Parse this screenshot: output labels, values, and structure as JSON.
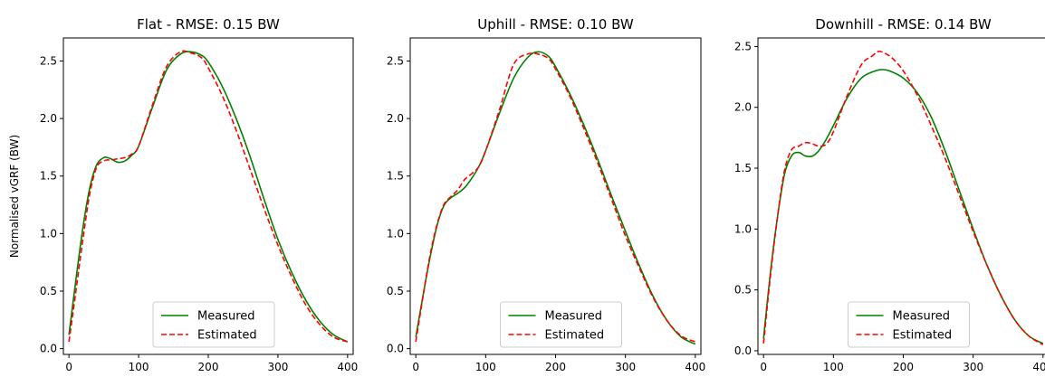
{
  "chart_data": [
    {
      "type": "line",
      "title": "Flat - RMSE: 0.15 BW",
      "ylabel": "Normalised vGRF (BW)",
      "xlabel": "",
      "xlim": [
        -8,
        408
      ],
      "ylim": [
        -0.05,
        2.7
      ],
      "xticks": [
        0,
        100,
        200,
        300,
        400
      ],
      "yticks": [
        0.0,
        0.5,
        1.0,
        1.5,
        2.0,
        2.5
      ],
      "xtick_labels": [
        "0",
        "100",
        "200",
        "300",
        "400"
      ],
      "ytick_labels": [
        "0.0",
        "0.5",
        "1.0",
        "1.5",
        "2.0",
        "2.5"
      ],
      "legend": "lower-center",
      "series": [
        {
          "name": "Measured",
          "color": "#008000",
          "style": "solid",
          "x": [
            0,
            10,
            20,
            30,
            40,
            50,
            55,
            60,
            70,
            80,
            90,
            100,
            120,
            140,
            160,
            175,
            190,
            200,
            220,
            240,
            260,
            280,
            300,
            320,
            340,
            360,
            380,
            400
          ],
          "y": [
            0.12,
            0.6,
            1.05,
            1.4,
            1.6,
            1.66,
            1.66,
            1.65,
            1.62,
            1.63,
            1.68,
            1.76,
            2.1,
            2.42,
            2.56,
            2.58,
            2.55,
            2.49,
            2.28,
            2.0,
            1.67,
            1.3,
            0.95,
            0.66,
            0.42,
            0.24,
            0.12,
            0.06
          ]
        },
        {
          "name": "Estimated",
          "color": "#ff0000",
          "style": "dashed",
          "x": [
            0,
            10,
            20,
            30,
            40,
            50,
            55,
            60,
            70,
            80,
            90,
            100,
            120,
            140,
            160,
            175,
            190,
            200,
            220,
            240,
            260,
            280,
            300,
            320,
            340,
            360,
            380,
            400
          ],
          "y": [
            0.06,
            0.5,
            0.95,
            1.35,
            1.58,
            1.63,
            1.64,
            1.64,
            1.65,
            1.66,
            1.69,
            1.76,
            2.12,
            2.45,
            2.58,
            2.57,
            2.53,
            2.44,
            2.2,
            1.9,
            1.56,
            1.22,
            0.9,
            0.62,
            0.38,
            0.21,
            0.1,
            0.06
          ]
        }
      ]
    },
    {
      "type": "line",
      "title": "Uphill - RMSE: 0.10 BW",
      "xlabel": "",
      "ylabel": "",
      "xlim": [
        -8,
        408
      ],
      "ylim": [
        -0.05,
        2.7
      ],
      "xticks": [
        0,
        100,
        200,
        300,
        400
      ],
      "yticks": [
        0.0,
        0.5,
        1.0,
        1.5,
        2.0,
        2.5
      ],
      "xtick_labels": [
        "0",
        "100",
        "200",
        "300",
        "400"
      ],
      "ytick_labels": [
        "0.0",
        "0.5",
        "1.0",
        "1.5",
        "2.0",
        "2.5"
      ],
      "legend": "lower-center",
      "series": [
        {
          "name": "Measured",
          "color": "#008000",
          "style": "solid",
          "x": [
            0,
            10,
            20,
            30,
            40,
            50,
            60,
            70,
            80,
            90,
            100,
            120,
            140,
            160,
            175,
            190,
            200,
            220,
            240,
            260,
            280,
            300,
            320,
            340,
            360,
            380,
            400
          ],
          "y": [
            0.1,
            0.45,
            0.78,
            1.06,
            1.24,
            1.31,
            1.35,
            1.4,
            1.48,
            1.58,
            1.72,
            2.05,
            2.35,
            2.53,
            2.58,
            2.54,
            2.45,
            2.22,
            1.95,
            1.65,
            1.33,
            1.02,
            0.72,
            0.45,
            0.24,
            0.1,
            0.04
          ]
        },
        {
          "name": "Estimated",
          "color": "#ff0000",
          "style": "dashed",
          "x": [
            0,
            10,
            20,
            30,
            40,
            50,
            60,
            70,
            80,
            90,
            100,
            120,
            140,
            160,
            175,
            190,
            200,
            220,
            240,
            260,
            280,
            300,
            320,
            340,
            360,
            380,
            400
          ],
          "y": [
            0.06,
            0.44,
            0.8,
            1.07,
            1.25,
            1.32,
            1.38,
            1.47,
            1.52,
            1.58,
            1.72,
            2.08,
            2.47,
            2.56,
            2.56,
            2.52,
            2.43,
            2.2,
            1.92,
            1.62,
            1.3,
            0.98,
            0.7,
            0.44,
            0.24,
            0.11,
            0.06
          ]
        }
      ]
    },
    {
      "type": "line",
      "title": "Downhill - RMSE: 0.14 BW",
      "xlabel": "",
      "ylabel": "",
      "xlim": [
        -8,
        408
      ],
      "ylim": [
        -0.03,
        2.57
      ],
      "xticks": [
        0,
        100,
        200,
        300,
        400
      ],
      "yticks": [
        0.0,
        0.5,
        1.0,
        1.5,
        2.0,
        2.5
      ],
      "xtick_labels": [
        "0",
        "100",
        "200",
        "300",
        "400"
      ],
      "ytick_labels": [
        "0.0",
        "0.5",
        "1.0",
        "1.5",
        "2.0",
        "2.5"
      ],
      "legend": "lower-center",
      "series": [
        {
          "name": "Measured",
          "color": "#008000",
          "style": "solid",
          "x": [
            0,
            10,
            20,
            30,
            40,
            50,
            60,
            70,
            80,
            90,
            100,
            120,
            140,
            160,
            170,
            180,
            200,
            220,
            240,
            260,
            280,
            300,
            320,
            340,
            360,
            380,
            400
          ],
          "y": [
            0.1,
            0.65,
            1.1,
            1.45,
            1.6,
            1.63,
            1.6,
            1.6,
            1.65,
            1.74,
            1.85,
            2.08,
            2.24,
            2.3,
            2.31,
            2.3,
            2.24,
            2.12,
            1.92,
            1.64,
            1.32,
            1.0,
            0.7,
            0.45,
            0.25,
            0.12,
            0.06
          ]
        },
        {
          "name": "Estimated",
          "color": "#ff0000",
          "style": "dashed",
          "x": [
            0,
            10,
            20,
            30,
            40,
            50,
            60,
            70,
            80,
            90,
            100,
            120,
            140,
            155,
            165,
            175,
            185,
            200,
            220,
            240,
            260,
            280,
            300,
            320,
            340,
            360,
            380,
            400
          ],
          "y": [
            0.06,
            0.62,
            1.1,
            1.48,
            1.65,
            1.68,
            1.71,
            1.7,
            1.68,
            1.7,
            1.8,
            2.1,
            2.35,
            2.42,
            2.46,
            2.44,
            2.4,
            2.3,
            2.1,
            1.85,
            1.58,
            1.28,
            0.98,
            0.7,
            0.45,
            0.25,
            0.12,
            0.05
          ]
        }
      ]
    }
  ]
}
